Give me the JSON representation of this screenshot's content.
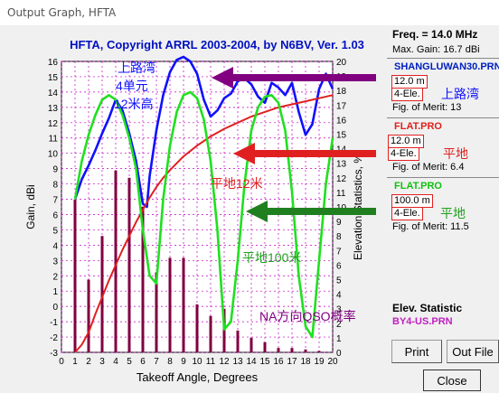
{
  "window": {
    "title": "Output Graph, HFTA"
  },
  "chart_data": {
    "type": "line",
    "title": "HFTA, Copyright ARRL 2003-2004, by N6BV, Ver. 1.03",
    "xlabel": "Takeoff Angle, Degrees",
    "ylabel_left": "Gain, dBi",
    "ylabel_right": "Elevation Statistics, %",
    "xlim": [
      0,
      20
    ],
    "ylim_left": [
      -3,
      16
    ],
    "ylim_right": [
      0,
      20
    ],
    "x_ticks": [
      0,
      1,
      2,
      3,
      4,
      5,
      6,
      7,
      8,
      9,
      10,
      11,
      12,
      13,
      14,
      15,
      16,
      17,
      18,
      19,
      20
    ],
    "y_left_ticks": [
      -3,
      -2,
      -1,
      0,
      1,
      2,
      3,
      4,
      5,
      6,
      7,
      8,
      9,
      10,
      11,
      12,
      13,
      14,
      15,
      16
    ],
    "y_right_ticks": [
      0,
      1,
      2,
      3,
      4,
      5,
      6,
      7,
      8,
      9,
      10,
      11,
      12,
      13,
      14,
      15,
      16,
      17,
      18,
      19,
      20
    ],
    "series": [
      {
        "name": "SHANGLUWAN30.PRN",
        "color": "#1010ff",
        "x": [
          1,
          1.5,
          2,
          2.5,
          3,
          3.5,
          4,
          4.5,
          5,
          5.5,
          6,
          6.3,
          6.5,
          7,
          7.5,
          8,
          8.5,
          9,
          9.5,
          10,
          10.5,
          11,
          11.5,
          12,
          12.5,
          13,
          13.5,
          14,
          14.5,
          15,
          15.5,
          16,
          16.5,
          17,
          17.5,
          18,
          18.5,
          19,
          19.5,
          20
        ],
        "y": [
          7,
          8.3,
          9.2,
          10.2,
          11.3,
          12.3,
          13.5,
          12.8,
          11.3,
          9.5,
          6.7,
          6.5,
          8.5,
          11.5,
          13.8,
          15.3,
          16.1,
          16.3,
          16,
          15.2,
          13.5,
          12.4,
          12.8,
          13.6,
          13.9,
          14.7,
          14.9,
          14.5,
          13.7,
          13.3,
          14.6,
          14.3,
          13.8,
          14.6,
          12.7,
          11.2,
          11.9,
          14.2,
          15.2,
          14.2
        ]
      },
      {
        "name": "FLAT.PRO",
        "color": "#e02020",
        "x": [
          1,
          1.5,
          2,
          2.5,
          3,
          3.5,
          4,
          4.5,
          5,
          5.5,
          6,
          6.5,
          7,
          7.5,
          8,
          9,
          10,
          11,
          12,
          13,
          14,
          15,
          16,
          17,
          18,
          19,
          20
        ],
        "y": [
          -3,
          -2.5,
          -1.7,
          -0.5,
          0.6,
          1.7,
          2.7,
          3.7,
          4.6,
          5.5,
          6.3,
          7.1,
          7.8,
          8.4,
          8.9,
          9.8,
          10.5,
          11.1,
          11.6,
          12,
          12.4,
          12.7,
          13,
          13.2,
          13.4,
          13.6,
          13.8
        ]
      },
      {
        "name": "FLAT.PRO",
        "color": "#20e020",
        "x": [
          1,
          1.5,
          2,
          2.5,
          3,
          3.5,
          4,
          4.5,
          5,
          5.5,
          6,
          6.5,
          7,
          7.5,
          8,
          8.5,
          9,
          9.5,
          10,
          10.5,
          11,
          11.5,
          12,
          12.5,
          13,
          13.5,
          14,
          14.5,
          15,
          15.5,
          16,
          16.5,
          17,
          17.5,
          18,
          18.5,
          19,
          19.5,
          20
        ],
        "y": [
          7,
          9.5,
          11.2,
          12.5,
          13.5,
          13.8,
          13.5,
          12.5,
          11,
          9,
          5,
          2,
          1.5,
          7,
          10.5,
          12.7,
          13.8,
          14,
          13.6,
          12.2,
          9.5,
          5,
          -1.5,
          -1,
          3,
          8,
          11.5,
          13,
          13.7,
          13.8,
          13.3,
          11.5,
          7.5,
          2,
          -1.3,
          -2,
          3,
          8,
          11
        ]
      }
    ],
    "bars": {
      "name": "BY4-US.PRN",
      "color": "#800040",
      "x": [
        1,
        2,
        3,
        4,
        5,
        6,
        7,
        8,
        9,
        10,
        11,
        12,
        13,
        14,
        15,
        16,
        17,
        18,
        19
      ],
      "values": [
        10.5,
        5,
        8,
        12.5,
        12,
        10,
        5.5,
        6.5,
        6.5,
        3.3,
        2.5,
        3,
        1.5,
        1,
        0.7,
        0.3,
        0.3,
        0.2,
        0.1
      ]
    }
  },
  "annotations": {
    "a1": "上路湾",
    "a2": "4单元",
    "a3": "12米高",
    "a4": "平地12米",
    "a5": "平地100米",
    "a6": "NA方向QSO概率"
  },
  "panel": {
    "freq": "Freq. = 14.0 MHz",
    "maxgain": "Max. Gain: 16.7 dBi",
    "ant1": {
      "file": "SHANGLUWAN30.PRN",
      "h": "12.0 m",
      "el": "4-Ele.",
      "fom": "Fig. of Merit: 13",
      "cn": "上路湾"
    },
    "ant2": {
      "file": "FLAT.PRO",
      "h": "12.0 m",
      "el": "4-Ele.",
      "fom": "Fig. of Merit: 6.4",
      "cn": "平地"
    },
    "ant3": {
      "file": "FLAT.PRO",
      "h": "100.0 m",
      "el": "4-Ele.",
      "fom": "Fig. of Merit: 11.5",
      "cn": "平地"
    },
    "elev_title": "Elev. Statistic",
    "elev_file": "BY4-US.PRN",
    "print_label": "Print",
    "outfile_label": "Out File",
    "close_label": "Close"
  },
  "colors": {
    "blue": "#1010ff",
    "red": "#e02020",
    "green": "#20e020",
    "purple": "#800080",
    "bar": "#800040"
  }
}
